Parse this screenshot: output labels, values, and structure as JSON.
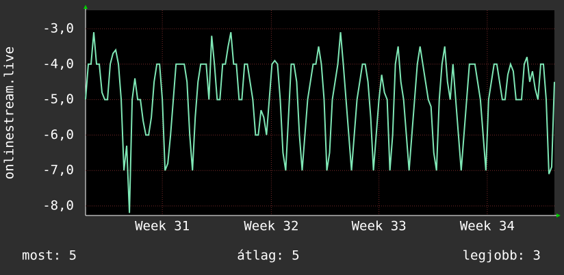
{
  "chart_data": {
    "type": "line",
    "y_label": "onlinestream.live",
    "series": [
      {
        "color": "#7fe8b6",
        "values": [
          -5,
          -4,
          -4,
          -3.1,
          -4,
          -4,
          -4.8,
          -5,
          -5,
          -4,
          -3.7,
          -3.6,
          -4,
          -5,
          -7,
          -6.3,
          -8.2,
          -5,
          -4.4,
          -5,
          -5,
          -5.6,
          -6,
          -6,
          -5.5,
          -4.5,
          -4,
          -4,
          -5,
          -7,
          -6.8,
          -6,
          -5,
          -4,
          -4,
          -4,
          -4,
          -4.5,
          -6,
          -7,
          -5.5,
          -4.5,
          -4,
          -4,
          -4,
          -5,
          -3.2,
          -4,
          -5,
          -5,
          -4,
          -4,
          -3.5,
          -3.1,
          -4,
          -4,
          -5,
          -5,
          -4,
          -4,
          -4.5,
          -5,
          -6,
          -6,
          -5.3,
          -5.5,
          -6,
          -5,
          -4,
          -3.9,
          -4,
          -5,
          -6.5,
          -7,
          -5.5,
          -4,
          -4,
          -4.5,
          -6,
          -7,
          -6,
          -5,
          -4.5,
          -4,
          -4,
          -3.5,
          -4,
          -5,
          -7,
          -6.5,
          -5,
          -4.5,
          -4,
          -3.1,
          -4,
          -5,
          -6,
          -7,
          -6,
          -5,
          -4.5,
          -4,
          -4,
          -4.5,
          -5.5,
          -7,
          -6,
          -5,
          -4.3,
          -4.8,
          -5,
          -7,
          -6,
          -4,
          -3.5,
          -4.5,
          -5,
          -6,
          -7,
          -6,
          -5,
          -4,
          -3.5,
          -4,
          -4.5,
          -5,
          -5.2,
          -6.5,
          -7,
          -5,
          -4,
          -3.5,
          -4.5,
          -5,
          -4,
          -5,
          -6,
          -7,
          -6,
          -5,
          -4,
          -4,
          -4,
          -4.5,
          -5,
          -6,
          -7,
          -5,
          -4.5,
          -4,
          -4,
          -4.5,
          -5,
          -5,
          -4.3,
          -4,
          -4.2,
          -5,
          -5,
          -5,
          -4,
          -3.8,
          -4.5,
          -4.2,
          -4.7,
          -5,
          -4,
          -4,
          -5,
          -7.1,
          -6.9,
          -4.5
        ]
      }
    ],
    "xlim": [
      0,
      171
    ],
    "xticks": [
      {
        "value": 28,
        "label": "Week 31"
      },
      {
        "value": 67.75,
        "label": "Week 32"
      },
      {
        "value": 107,
        "label": "Week 33"
      },
      {
        "value": 146.5,
        "label": "Week 34"
      }
    ],
    "ylim": [
      -8.27,
      -2.48
    ],
    "yticks": [
      {
        "value": -3,
        "label": "-3,0"
      },
      {
        "value": -4,
        "label": "-4,0"
      },
      {
        "value": -5,
        "label": "-5,0"
      },
      {
        "value": -6,
        "label": "-6,0"
      },
      {
        "value": -7,
        "label": "-7,0"
      },
      {
        "value": -8,
        "label": "-8,0"
      }
    ],
    "grid": true,
    "legend_text": [
      "most: 5",
      "átlag: 5",
      "legjobb: 3"
    ]
  }
}
